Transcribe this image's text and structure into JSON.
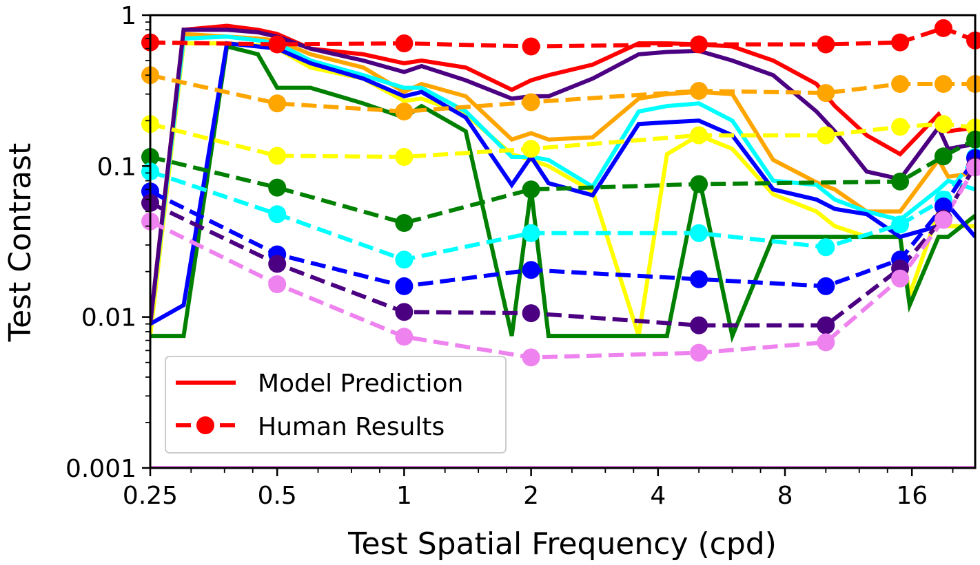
{
  "chart_data": {
    "type": "line",
    "xlabel": "Test Spatial Frequency (cpd)",
    "ylabel": "Test Contrast",
    "x_scale": "log2",
    "y_scale": "log10",
    "xlim": [
      0.25,
      22.6
    ],
    "ylim": [
      0.001,
      1
    ],
    "x_ticks": [
      0.25,
      0.5,
      1,
      2,
      4,
      8,
      16
    ],
    "x_tick_labels": [
      "0.25",
      "0.5",
      "1",
      "2",
      "4",
      "8",
      "16"
    ],
    "y_ticks": [
      0.001,
      0.01,
      0.1,
      1
    ],
    "y_tick_labels": [
      "0.001",
      "0.01",
      "0.1",
      "1"
    ],
    "legend": {
      "position": "bottom-left",
      "entries": [
        {
          "label": "Model Prediction",
          "style": "solid"
        },
        {
          "label": "Human Results",
          "style": "dashed-marker"
        }
      ]
    },
    "human_results": [
      {
        "color": "#ff0000",
        "x": [
          0.25,
          0.5,
          1,
          2,
          5,
          10,
          15,
          19,
          22.6
        ],
        "y": [
          0.66,
          0.64,
          0.65,
          0.62,
          0.64,
          0.64,
          0.66,
          0.82,
          0.68
        ]
      },
      {
        "color": "#ffa500",
        "x": [
          0.25,
          0.5,
          1,
          2,
          5,
          10,
          15,
          19,
          22.6
        ],
        "y": [
          0.4,
          0.26,
          0.23,
          0.265,
          0.315,
          0.305,
          0.35,
          0.35,
          0.35
        ]
      },
      {
        "color": "#ffff00",
        "x": [
          0.25,
          0.5,
          1,
          2,
          5,
          10,
          15,
          19,
          22.6
        ],
        "y": [
          0.19,
          0.117,
          0.115,
          0.13,
          0.16,
          0.16,
          0.182,
          0.19,
          0.18
        ]
      },
      {
        "color": "#008000",
        "x": [
          0.25,
          0.5,
          1,
          2,
          5,
          15,
          19,
          22.6
        ],
        "y": [
          0.115,
          0.072,
          0.042,
          0.07,
          0.076,
          0.079,
          0.116,
          0.15
        ]
      },
      {
        "color": "#00ffff",
        "x": [
          0.25,
          0.5,
          1,
          2,
          5,
          10,
          15,
          19,
          22.6
        ],
        "y": [
          0.092,
          0.048,
          0.024,
          0.036,
          0.036,
          0.029,
          0.041,
          0.06,
          0.115
        ]
      },
      {
        "color": "#0000ff",
        "x": [
          0.25,
          0.5,
          1,
          2,
          5,
          10,
          15,
          19,
          22.6
        ],
        "y": [
          0.068,
          0.026,
          0.016,
          0.0205,
          0.0178,
          0.016,
          0.024,
          0.054,
          0.113
        ]
      },
      {
        "color": "#4b0082",
        "x": [
          0.25,
          0.5,
          1,
          2,
          5,
          10,
          15,
          19,
          22.6
        ],
        "y": [
          0.057,
          0.0225,
          0.0108,
          0.0106,
          0.0088,
          0.0088,
          0.021,
          0.045,
          0.1
        ]
      },
      {
        "color": "#ee82ee",
        "x": [
          0.25,
          0.5,
          1,
          2,
          5,
          10,
          15,
          19,
          22.6
        ],
        "y": [
          0.043,
          0.0165,
          0.0074,
          0.0054,
          0.0058,
          0.0068,
          0.018,
          0.044,
          0.098
        ]
      }
    ],
    "model_predictions": [
      {
        "color": "#ff0000",
        "x": [
          0.25,
          0.3,
          0.38,
          0.45,
          0.5,
          0.6,
          0.8,
          1,
          1.1,
          1.4,
          1.8,
          2,
          2.2,
          2.8,
          3.6,
          4.2,
          5,
          6,
          7.5,
          9.5,
          10.5,
          12.5,
          15,
          18.5,
          19.5,
          22.6
        ],
        "y": [
          0.009,
          0.8,
          0.85,
          0.8,
          0.75,
          0.6,
          0.55,
          0.48,
          0.5,
          0.45,
          0.32,
          0.37,
          0.4,
          0.47,
          0.65,
          0.65,
          0.64,
          0.62,
          0.5,
          0.35,
          0.25,
          0.16,
          0.12,
          0.22,
          0.17,
          0.18
        ]
      },
      {
        "color": "#ffa500",
        "x": [
          0.25,
          0.3,
          0.38,
          0.45,
          0.5,
          0.6,
          0.8,
          1,
          1.1,
          1.4,
          1.8,
          2,
          2.2,
          2.8,
          3.6,
          4.2,
          5,
          6,
          7.5,
          9.5,
          10.5,
          12.5,
          15,
          18.5,
          19.5,
          22.6
        ],
        "y": [
          0.009,
          0.75,
          0.72,
          0.7,
          0.68,
          0.55,
          0.45,
          0.31,
          0.35,
          0.29,
          0.15,
          0.165,
          0.15,
          0.155,
          0.28,
          0.3,
          0.31,
          0.3,
          0.11,
          0.078,
          0.07,
          0.05,
          0.05,
          0.11,
          0.085,
          0.09
        ]
      },
      {
        "color": "#ffff00",
        "x": [
          0.25,
          0.3,
          0.38,
          0.45,
          0.5,
          0.6,
          0.8,
          1,
          1.1,
          1.4,
          1.8,
          2,
          2.2,
          2.8,
          3.6,
          4.2,
          5,
          6,
          7.5,
          9.5,
          10.5,
          12.5,
          15,
          15.8,
          18.5,
          19.5,
          22.6
        ],
        "y": [
          0.0075,
          0.65,
          0.65,
          0.63,
          0.6,
          0.45,
          0.38,
          0.27,
          0.28,
          0.22,
          0.12,
          0.11,
          0.1,
          0.068,
          0.0075,
          0.12,
          0.16,
          0.13,
          0.065,
          0.05,
          0.04,
          0.034,
          0.034,
          0.014,
          0.05,
          0.04,
          0.04
        ]
      },
      {
        "color": "#008000",
        "x": [
          0.25,
          0.3,
          0.38,
          0.45,
          0.5,
          0.6,
          0.8,
          1,
          1.1,
          1.4,
          1.8,
          2,
          2.2,
          2.8,
          3.6,
          4.2,
          5,
          6,
          7.5,
          9.5,
          10.5,
          12.5,
          15,
          15.8,
          18.5,
          19.5,
          22.6
        ],
        "y": [
          0.0075,
          0.0075,
          0.62,
          0.55,
          0.33,
          0.33,
          0.26,
          0.21,
          0.25,
          0.17,
          0.0075,
          0.07,
          0.0075,
          0.0075,
          0.0075,
          0.0075,
          0.085,
          0.0075,
          0.034,
          0.034,
          0.034,
          0.034,
          0.034,
          0.012,
          0.034,
          0.034,
          0.047
        ]
      },
      {
        "color": "#00ffff",
        "x": [
          0.25,
          0.3,
          0.38,
          0.45,
          0.5,
          0.6,
          0.8,
          1,
          1.1,
          1.4,
          1.8,
          2,
          2.2,
          2.8,
          3.6,
          4.2,
          5,
          6,
          7.5,
          9.5,
          10.5,
          12.5,
          15,
          18.5,
          19.5,
          22.6
        ],
        "y": [
          0.009,
          0.7,
          0.72,
          0.68,
          0.65,
          0.5,
          0.4,
          0.33,
          0.33,
          0.23,
          0.115,
          0.115,
          0.11,
          0.073,
          0.23,
          0.25,
          0.26,
          0.2,
          0.08,
          0.075,
          0.06,
          0.05,
          0.044,
          0.07,
          0.08,
          0.07
        ]
      },
      {
        "color": "#0000ff",
        "x": [
          0.25,
          0.3,
          0.38,
          0.45,
          0.5,
          0.6,
          0.8,
          1,
          1.1,
          1.4,
          1.8,
          2,
          2.2,
          2.8,
          3.6,
          4.2,
          5,
          6,
          7.5,
          9.5,
          10.5,
          12.5,
          15,
          18.5,
          19.5,
          22.6
        ],
        "y": [
          0.009,
          0.012,
          0.65,
          0.62,
          0.6,
          0.48,
          0.38,
          0.29,
          0.31,
          0.21,
          0.075,
          0.115,
          0.077,
          0.064,
          0.19,
          0.195,
          0.2,
          0.16,
          0.07,
          0.06,
          0.052,
          0.048,
          0.034,
          0.04,
          0.055,
          0.034
        ]
      },
      {
        "color": "#4b0082",
        "x": [
          0.25,
          0.3,
          0.38,
          0.45,
          0.5,
          0.6,
          0.8,
          1,
          1.1,
          1.4,
          1.8,
          2,
          2.2,
          2.8,
          3.6,
          4.2,
          5,
          6,
          7.5,
          9.5,
          10.5,
          12.5,
          15,
          18.5,
          19.5,
          22.6
        ],
        "y": [
          0.009,
          0.8,
          0.8,
          0.77,
          0.72,
          0.6,
          0.5,
          0.42,
          0.46,
          0.37,
          0.28,
          0.29,
          0.29,
          0.38,
          0.55,
          0.57,
          0.58,
          0.5,
          0.4,
          0.23,
          0.17,
          0.092,
          0.082,
          0.18,
          0.13,
          0.14
        ]
      },
      {
        "color": "#ee82ee",
        "x": [
          0.25,
          22.6
        ],
        "y": [
          0.001,
          0.001
        ]
      }
    ]
  }
}
